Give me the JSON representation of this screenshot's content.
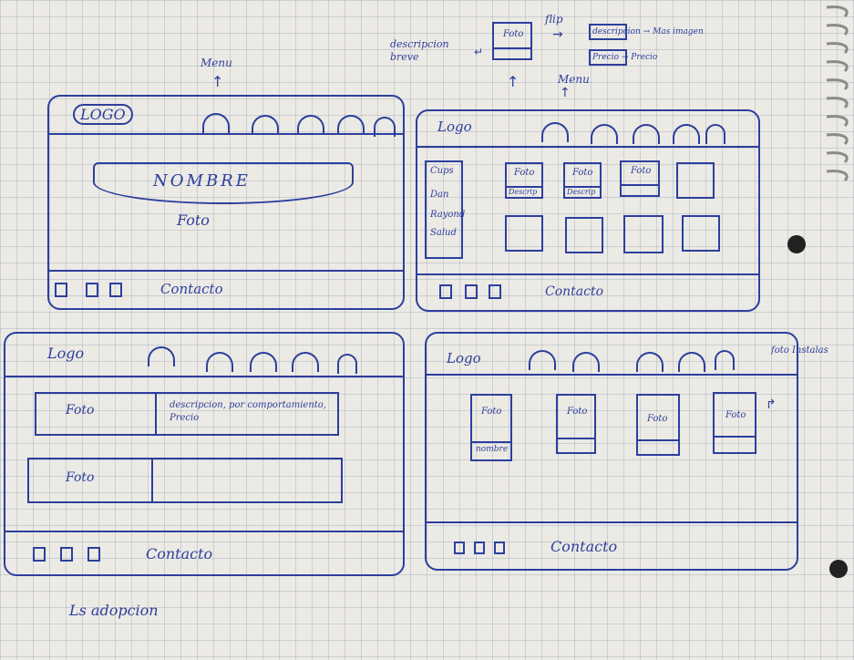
{
  "colors": {
    "ink": "#2c3f9e",
    "paper": "#eceae4",
    "grid": "#8a9ab8"
  },
  "top_notes": {
    "menu_label": "Menu",
    "descripcion_breve": "descripcion breve",
    "flip": "flip",
    "foto": "Foto",
    "descripcion_mas_imagen": "descripcion → Mas imagen",
    "precio": "Precio → Precio",
    "menu2": "Menu"
  },
  "panel1": {
    "logo": "LOGO",
    "nombre": "NOMBRE",
    "foto": "Foto",
    "contacto": "Contacto"
  },
  "panel2": {
    "logo": "Logo",
    "sidebar": [
      "Cups",
      "Dan",
      "Rayond",
      "Salud"
    ],
    "card_foto": "Foto",
    "card_desc": "Descrip",
    "contacto": "Contacto"
  },
  "panel3": {
    "logo": "Logo",
    "rows": [
      {
        "foto": "Foto",
        "desc": "descripcion, por comportamiento, Precio"
      },
      {
        "foto": "Foto",
        "desc": ""
      }
    ],
    "contacto": "Contacto"
  },
  "panel4": {
    "logo": "Logo",
    "card_foto": "Foto",
    "card_nombre": "nombre",
    "side_note": "foto Instalas",
    "contacto": "Contacto"
  },
  "bottom_note": "Ls adopcion"
}
